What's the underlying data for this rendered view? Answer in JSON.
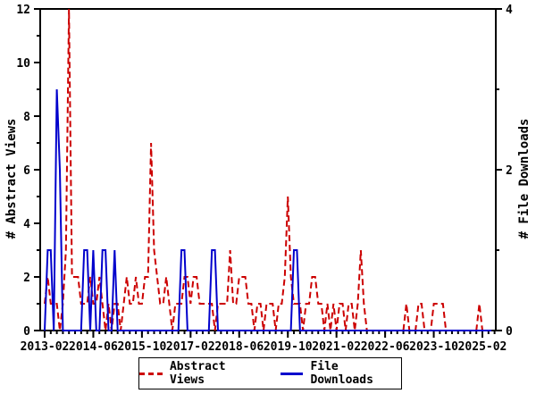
{
  "chart": {
    "left_axis": {
      "label": "# Abstract Views",
      "min": 0,
      "max": 12,
      "major_ticks": [
        0,
        2,
        4,
        6,
        8,
        10,
        12
      ],
      "minor_step": 1
    },
    "right_axis": {
      "label": "# File Downloads",
      "min": 0,
      "max": 4,
      "major_ticks": [
        0,
        2,
        4
      ],
      "minor_step": 1
    },
    "x_axis": {
      "tick_labels": [
        "2013-02",
        "2014-06",
        "2015-10",
        "2017-02",
        "2018-06",
        "2019-10",
        "2021-02",
        "2022-06",
        "2023-10",
        "2025-02"
      ],
      "tick_month_indices": [
        0,
        16,
        32,
        48,
        64,
        80,
        96,
        112,
        128,
        144
      ],
      "minor_step_months": 2
    },
    "legend": {
      "items": [
        {
          "label": "Abstract Views",
          "color": "#cc0000",
          "style": "dashed"
        },
        {
          "label": "File Downloads",
          "color": "#0000cc",
          "style": "solid"
        }
      ]
    },
    "colors": {
      "frame": "#000000",
      "background": "#ffffff",
      "abstract_views": "#cc0000",
      "file_downloads": "#0000cc"
    }
  },
  "chart_data": {
    "type": "line",
    "frequency": "monthly",
    "x_start": "2013-02",
    "x_end": "2025-05",
    "title": "",
    "xlabel": "",
    "ylabel_left": "# Abstract Views",
    "ylabel_right": "# File Downloads",
    "ylim_left": [
      0,
      12
    ],
    "ylim_right": [
      0,
      4
    ],
    "grid": false,
    "legend_position": "bottom-center",
    "series": [
      {
        "name": "Abstract Views",
        "axis": "left",
        "color": "#cc0000",
        "dash": "7 4",
        "values": [
          1,
          2,
          1,
          1,
          1,
          0,
          1,
          3,
          12,
          2,
          2,
          2,
          1,
          1,
          1,
          2,
          1,
          1,
          2,
          1,
          0,
          1,
          0,
          1,
          1,
          0,
          1,
          2,
          1,
          1,
          2,
          1,
          1,
          2,
          2,
          7,
          3,
          2,
          1,
          1,
          2,
          1,
          0,
          1,
          1,
          1,
          2,
          2,
          1,
          2,
          2,
          1,
          1,
          1,
          1,
          1,
          0,
          1,
          1,
          1,
          1,
          3,
          1,
          1,
          2,
          2,
          2,
          1,
          1,
          0,
          1,
          1,
          0,
          1,
          1,
          1,
          0,
          1,
          1,
          2,
          5,
          2,
          1,
          1,
          1,
          0,
          1,
          1,
          2,
          2,
          1,
          1,
          0,
          1,
          0,
          1,
          0,
          1,
          1,
          0,
          1,
          1,
          0,
          1,
          3,
          1,
          0,
          0,
          0,
          0,
          0,
          0,
          0,
          0,
          0,
          0,
          0,
          0,
          0,
          1,
          0,
          0,
          0,
          1,
          1,
          0,
          0,
          0,
          1,
          1,
          1,
          1,
          0,
          0,
          0,
          0,
          0,
          0,
          0,
          0,
          0,
          0,
          0,
          1,
          0,
          0,
          0,
          0
        ]
      },
      {
        "name": "File Downloads",
        "axis": "right",
        "color": "#0000cc",
        "dash": "",
        "values": [
          0,
          1,
          1,
          0,
          3,
          2,
          0,
          0,
          0,
          0,
          0,
          0,
          0,
          1,
          1,
          0,
          1,
          0,
          0,
          1,
          1,
          0,
          0,
          1,
          0,
          0,
          0,
          0,
          0,
          0,
          0,
          0,
          0,
          0,
          0,
          0,
          0,
          0,
          0,
          0,
          0,
          0,
          0,
          0,
          0,
          1,
          1,
          0,
          0,
          0,
          0,
          0,
          0,
          0,
          0,
          1,
          1,
          0,
          0,
          0,
          0,
          0,
          0,
          0,
          0,
          0,
          0,
          0,
          0,
          0,
          0,
          0,
          0,
          0,
          0,
          0,
          0,
          0,
          0,
          0,
          0,
          0,
          1,
          1,
          0,
          0,
          0,
          0,
          0,
          0,
          0,
          0,
          0,
          0,
          0,
          0,
          0,
          0,
          0,
          0,
          0,
          0,
          0,
          0,
          0,
          0,
          0,
          0,
          0,
          0,
          0,
          0,
          0,
          0,
          0,
          0,
          0,
          0,
          0,
          0,
          0,
          0,
          0,
          0,
          0,
          0,
          0,
          0,
          0,
          0,
          0,
          0,
          0,
          0,
          0,
          0,
          0,
          0,
          0,
          0,
          0,
          0,
          0,
          0,
          0,
          0,
          0,
          0
        ]
      }
    ]
  }
}
